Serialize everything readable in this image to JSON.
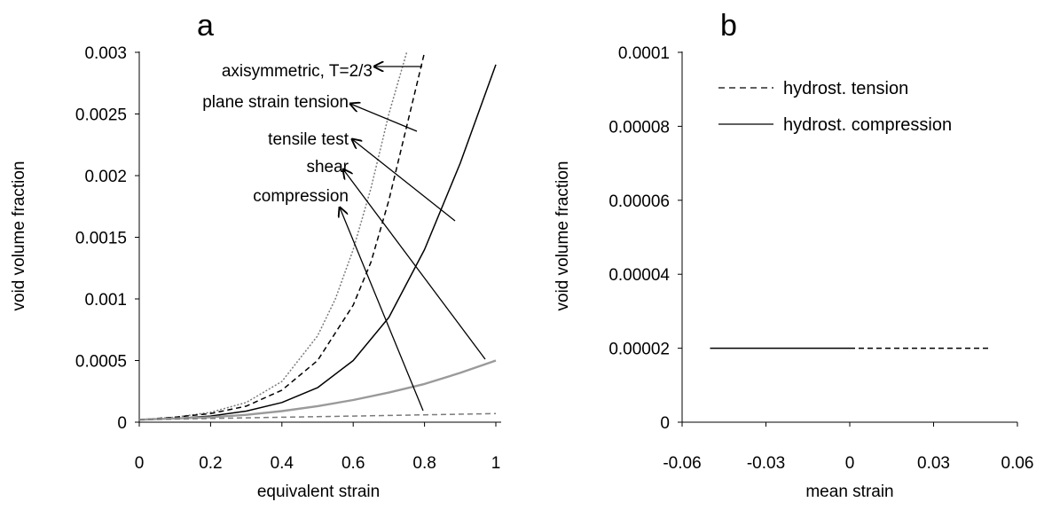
{
  "chart_data": [
    {
      "panel_label": "a",
      "type": "line",
      "xlabel": "equivalent strain",
      "ylabel": "void volume fraction",
      "xlim": [
        0,
        1
      ],
      "ylim": [
        0,
        0.003
      ],
      "xticks": [
        "0",
        "0.2",
        "0.4",
        "0.6",
        "0.8",
        "1"
      ],
      "yticks": [
        "0",
        "0.0005",
        "0.001",
        "0.0015",
        "0.002",
        "0.0025",
        "0.003"
      ],
      "grid": false,
      "series": [
        {
          "name": "axisymmetric, T=2/3",
          "style": "dotted",
          "color": "#7a7a7a",
          "x": [
            0,
            0.1,
            0.2,
            0.3,
            0.4,
            0.5,
            0.55,
            0.6,
            0.65,
            0.7,
            0.75
          ],
          "y": [
            2e-05,
            4e-05,
            8e-05,
            0.00016,
            0.00033,
            0.0007,
            0.001,
            0.0014,
            0.0019,
            0.0025,
            0.003
          ]
        },
        {
          "name": "plane strain tension",
          "style": "dashed",
          "color": "#000000",
          "x": [
            0,
            0.1,
            0.2,
            0.3,
            0.4,
            0.5,
            0.6,
            0.65,
            0.7,
            0.75,
            0.8
          ],
          "y": [
            2e-05,
            4e-05,
            7e-05,
            0.00013,
            0.00026,
            0.0005,
            0.00095,
            0.0013,
            0.0018,
            0.0024,
            0.003
          ]
        },
        {
          "name": "tensile test",
          "style": "solid",
          "color": "#000000",
          "x": [
            0,
            0.1,
            0.2,
            0.3,
            0.4,
            0.5,
            0.6,
            0.7,
            0.8,
            0.9,
            1.0
          ],
          "y": [
            2e-05,
            3e-05,
            5e-05,
            9e-05,
            0.00016,
            0.00028,
            0.0005,
            0.00085,
            0.0014,
            0.0021,
            0.0029
          ]
        },
        {
          "name": "shear",
          "style": "solid",
          "color": "#9a9a9a",
          "x": [
            0,
            0.1,
            0.2,
            0.3,
            0.4,
            0.5,
            0.6,
            0.7,
            0.8,
            0.9,
            1.0
          ],
          "y": [
            2e-05,
            3e-05,
            4e-05,
            6e-05,
            9e-05,
            0.00013,
            0.00018,
            0.00024,
            0.00031,
            0.0004,
            0.0005
          ]
        },
        {
          "name": "compression",
          "style": "dashed",
          "color": "#7a7a7a",
          "x": [
            0,
            0.2,
            0.4,
            0.6,
            0.8,
            1.0
          ],
          "y": [
            2e-05,
            3e-05,
            4e-05,
            5e-05,
            6e-05,
            7e-05
          ]
        }
      ],
      "annotations": [
        {
          "text": "axisymmetric, T=2/3",
          "points_to": "axisymmetric, T=2/3"
        },
        {
          "text": "plane strain tension",
          "points_to": "plane strain tension"
        },
        {
          "text": "tensile test",
          "points_to": "tensile test"
        },
        {
          "text": "shear",
          "points_to": "shear"
        },
        {
          "text": "compression",
          "points_to": "compression"
        }
      ]
    },
    {
      "panel_label": "b",
      "type": "line",
      "xlabel": "mean strain",
      "ylabel": "void volume fraction",
      "xlim": [
        -0.06,
        0.06
      ],
      "ylim": [
        0,
        0.0001
      ],
      "xticks": [
        "-0.06",
        "-0.03",
        "0",
        "0.03",
        "0.06"
      ],
      "yticks": [
        "0",
        "0.00002",
        "0.00004",
        "0.00006",
        "0.00008",
        "0.0001"
      ],
      "grid": false,
      "legend": {
        "position": "top-left"
      },
      "series": [
        {
          "name": "hydrost. tension",
          "style": "dashed",
          "color": "#000000",
          "x": [
            0,
            0.05
          ],
          "y": [
            2e-05,
            2e-05
          ]
        },
        {
          "name": "hydrost. compression",
          "style": "solid",
          "color": "#000000",
          "x": [
            -0.05,
            0
          ],
          "y": [
            2e-05,
            2e-05
          ]
        }
      ]
    }
  ]
}
